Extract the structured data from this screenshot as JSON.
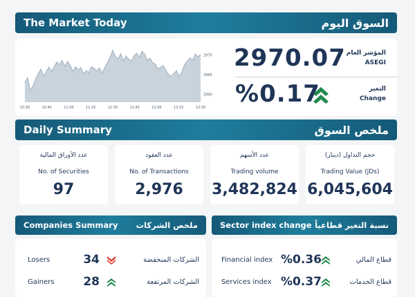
{
  "header": {
    "title_en": "The Market Today",
    "title_ar": "السوق اليوم"
  },
  "index": {
    "label_ar": "المؤشر العام",
    "label_en": "ASEGI",
    "value": "2970.07",
    "change_label_ar": "التغير",
    "change_label_en": "Change",
    "change_value": "%0.17",
    "direction": "up"
  },
  "chart_data": {
    "type": "area",
    "x_tick_labels": [
      "10:30",
      "10:45",
      "11:00",
      "11:15",
      "11:30",
      "11:45",
      "12:00",
      "12:15",
      "12:30"
    ],
    "y_tick_labels": [
      "2970",
      "2965",
      "2960"
    ],
    "ylim": [
      2958,
      2972
    ],
    "values": [
      2963.0,
      2964.2,
      2961.0,
      2962.1,
      2963.8,
      2965.2,
      2966.4,
      2964.6,
      2965.7,
      2966.9,
      2965.8,
      2967.0,
      2968.2,
      2967.5,
      2968.6,
      2967.1,
      2968.3,
      2967.4,
      2965.8,
      2967.0,
      2966.2,
      2966.8,
      2965.2,
      2966.0,
      2965.5,
      2967.0,
      2966.6,
      2965.9,
      2966.7,
      2965.4,
      2966.8,
      2968.0,
      2969.4,
      2971.2,
      2969.6,
      2969.0,
      2970.3,
      2968.4,
      2969.7,
      2968.9,
      2968.4,
      2969.8,
      2970.4,
      2969.4,
      2970.9,
      2970.2,
      2968.6,
      2969.2,
      2968.0,
      2967.7,
      2966.4,
      2966.9,
      2967.3,
      2966.1,
      2965.0,
      2964.6,
      2965.3,
      2966.0,
      2964.5,
      2965.8,
      2967.6,
      2968.4,
      2969.2,
      2968.6,
      2970.2,
      2969.5,
      2970.07
    ]
  },
  "daily": {
    "title_en": "Daily Summary",
    "title_ar": "ملخص السوق",
    "tiles": [
      {
        "label_ar": "عدد الأوراق المالية",
        "label_en": "No. of Securities",
        "value": "97"
      },
      {
        "label_ar": "عدد العقود",
        "label_en": "No. of Transactions",
        "value": "2,976"
      },
      {
        "label_ar": "عدد الأسهم",
        "label_en": "Trading volume",
        "value": "3,482,824"
      },
      {
        "label_ar": "حجم التداول (دينار)",
        "label_en": "Trading Value (JDs)",
        "value": "6,045,604"
      }
    ]
  },
  "companies": {
    "title_en": "Companies Summary",
    "title_ar": "ملخص الشركات",
    "rows": [
      {
        "label_en": "Losers",
        "value": "34",
        "label_ar": "الشركات المنخفضة",
        "direction": "down"
      },
      {
        "label_en": "Gainers",
        "value": "28",
        "label_ar": "الشركات المرتفعة",
        "direction": "up"
      }
    ]
  },
  "sectors": {
    "title_en": "Sector index change",
    "title_ar": "نسبة التغير قطاعياً",
    "rows": [
      {
        "label_en": "Financial index",
        "value": "%0.36",
        "label_ar": "قطاع المالي",
        "direction": "up"
      },
      {
        "label_en": "Services index",
        "value": "%0.37",
        "label_ar": "قطاع الخدمات",
        "direction": "up"
      }
    ]
  },
  "colors": {
    "up": "#1f8a4c",
    "down": "#d8352a",
    "navy": "#1f3557",
    "teal": "#1a6d8c"
  }
}
